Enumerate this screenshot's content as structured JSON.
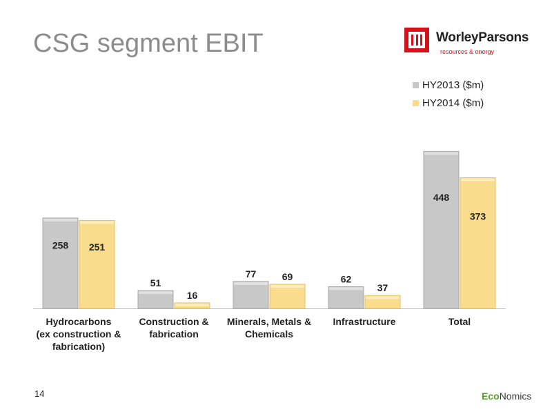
{
  "slide": {
    "title": "CSG segment EBIT",
    "page_number": "14"
  },
  "logo": {
    "name": "WorleyParsons",
    "tagline": "resources & energy"
  },
  "footer_logo": {
    "part1": "Eco",
    "part2": "Nomics"
  },
  "colors": {
    "series_2013": "#c8c8c8",
    "series_2014": "#fadd8c",
    "title": "#8c8c8c",
    "brand_red": "#d4101a"
  },
  "chart_data": {
    "type": "bar",
    "title": "",
    "xlabel": "",
    "ylabel": "",
    "ylim": [
      0,
      500
    ],
    "grid": false,
    "legend_position": "top-right",
    "categories": [
      [
        "Hydrocarbons",
        "(ex construction &",
        "fabrication)"
      ],
      [
        "Construction &",
        "fabrication"
      ],
      [
        "Minerals, Metals &",
        "Chemicals"
      ],
      [
        "Infrastructure"
      ],
      [
        "Total"
      ]
    ],
    "series": [
      {
        "name": "HY2013 ($m)",
        "values": [
          258,
          51,
          77,
          62,
          448
        ],
        "labels": [
          "258",
          "51",
          "77",
          "62",
          "448"
        ]
      },
      {
        "name": "HY2014 ($m)",
        "values": [
          251,
          16,
          69,
          37,
          373
        ],
        "labels": [
          "251",
          "16",
          "69",
          "37",
          "373"
        ]
      }
    ]
  }
}
